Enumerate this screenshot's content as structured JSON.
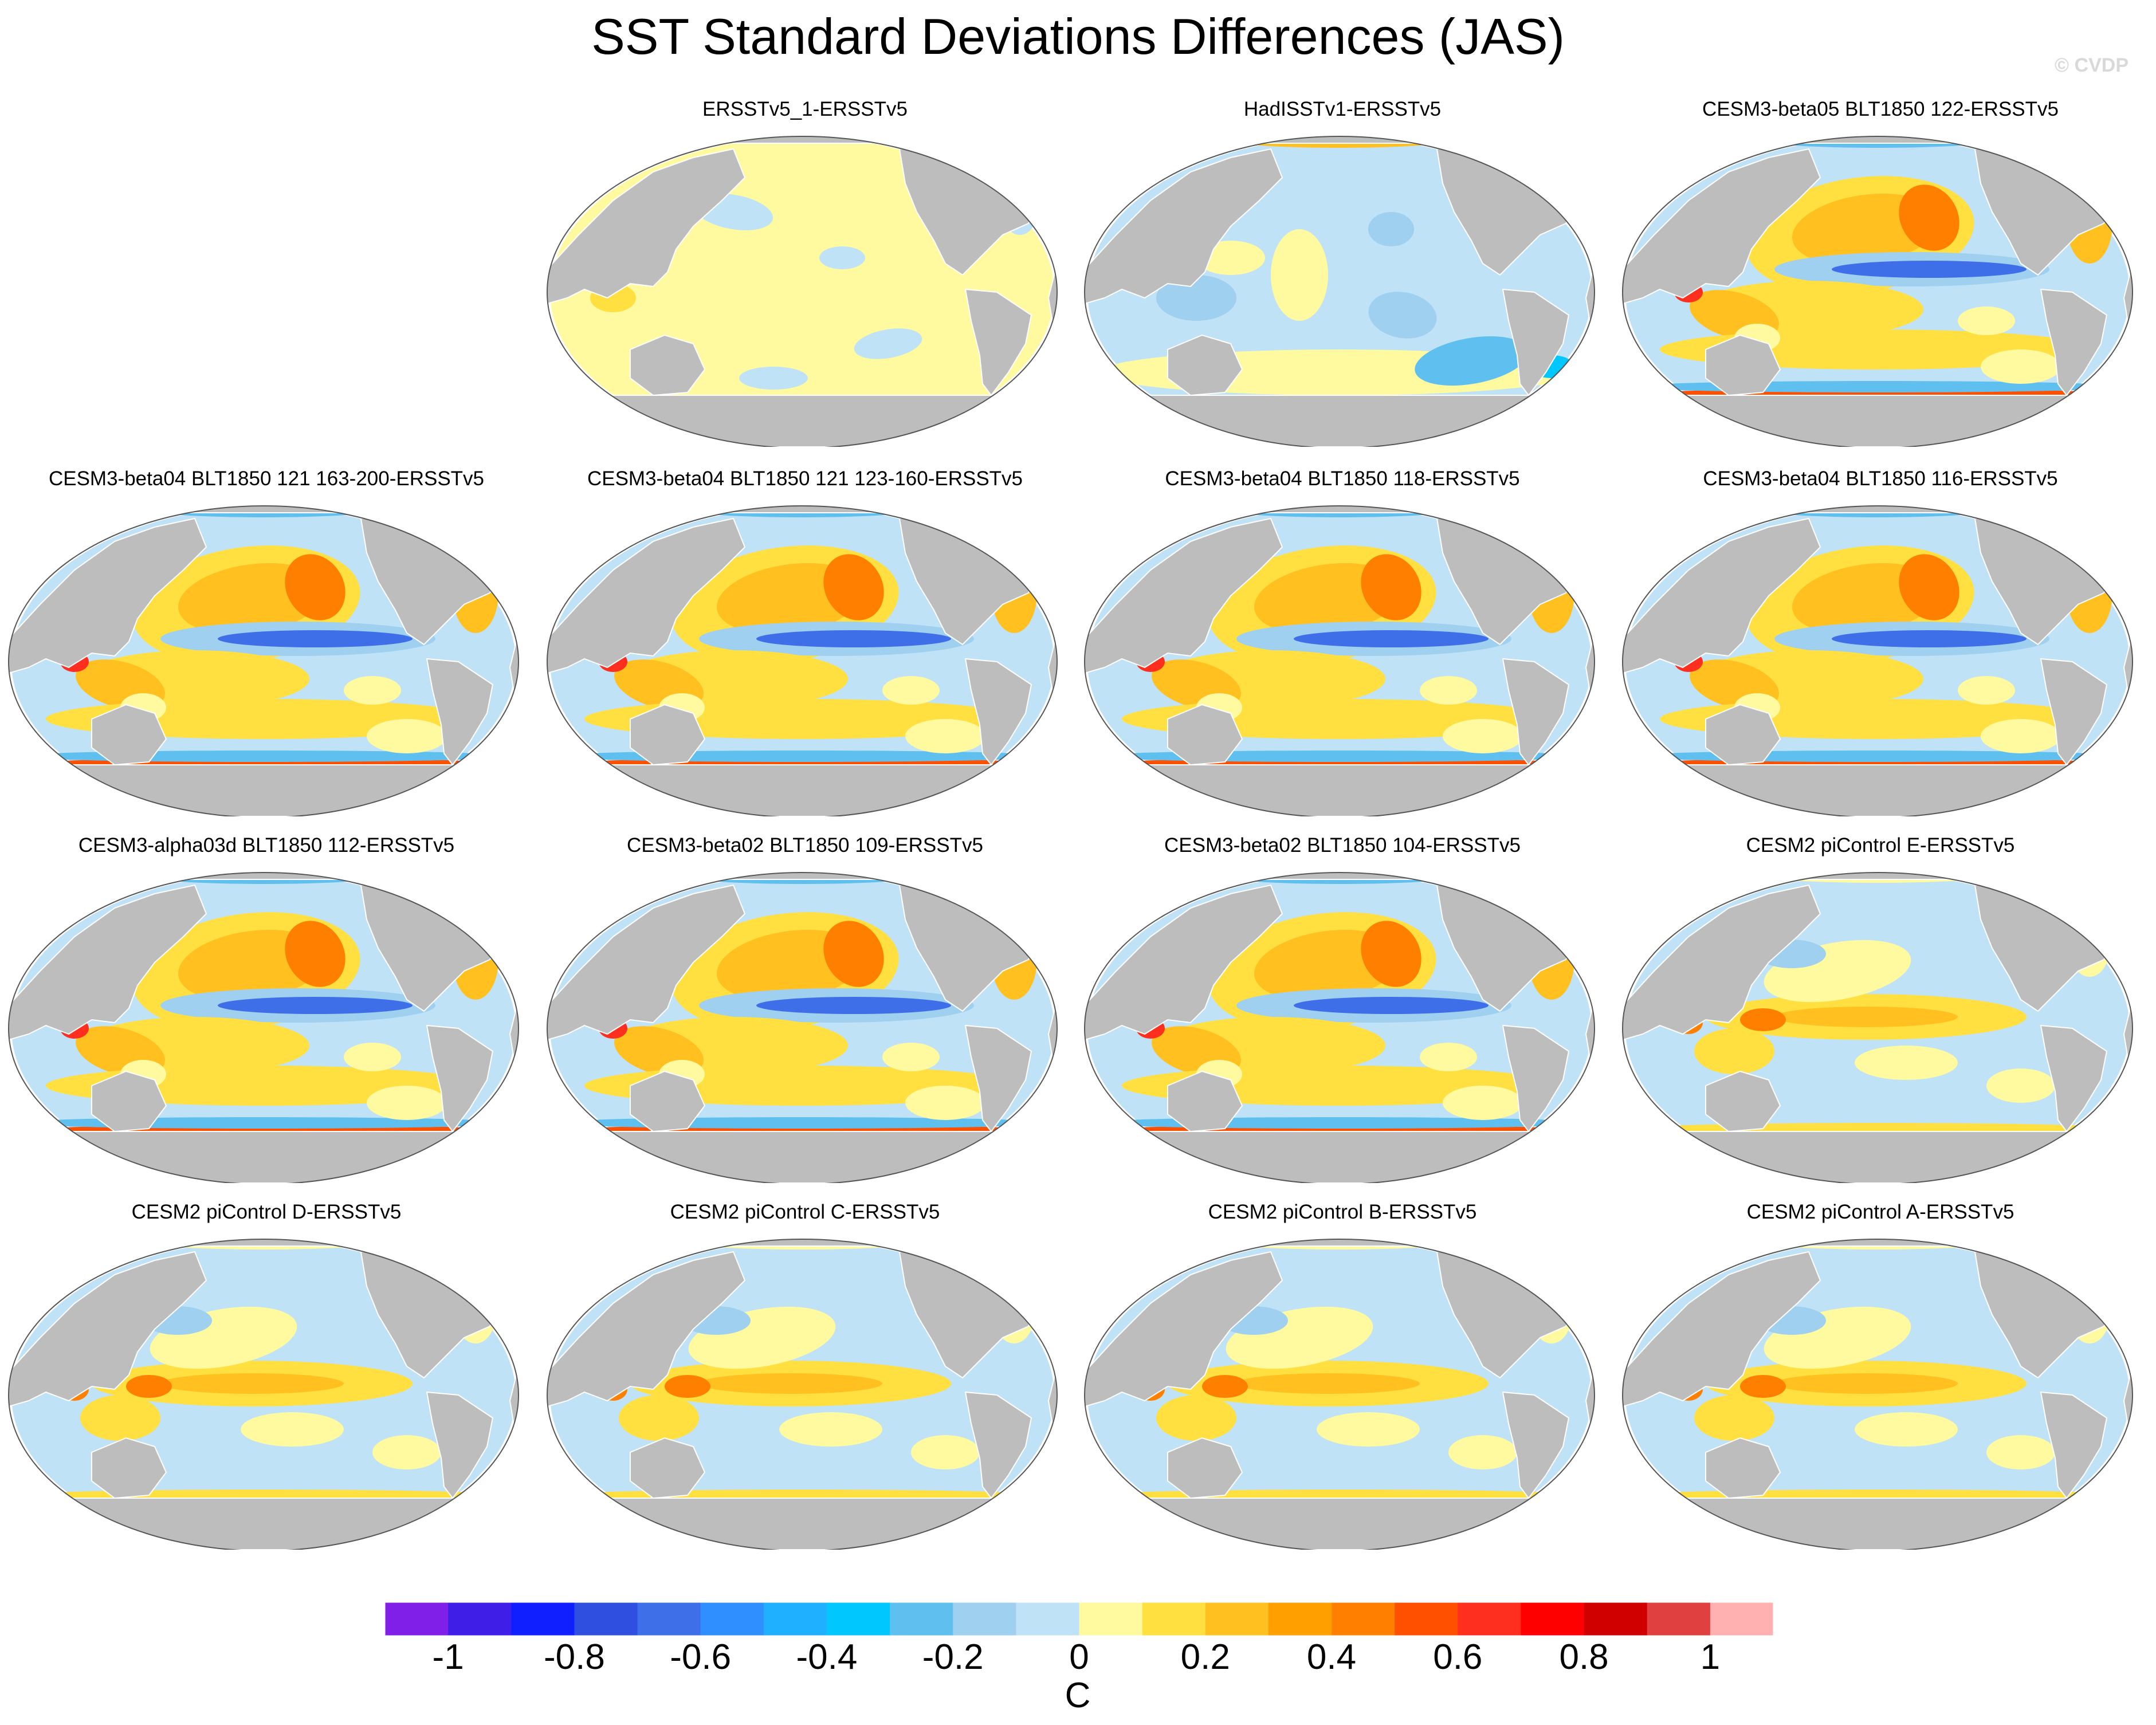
{
  "title": "SST Standard Deviations Differences (JAS)",
  "watermark": "© CVDP",
  "panels": [
    {
      "label": "ERSSTv5_1-ERSSTv5",
      "pattern": "neutral"
    },
    {
      "label": "HadISSTv1-ERSSTv5",
      "pattern": "cool"
    },
    {
      "label": "CESM3-beta05 BLT1850 122-ERSSTv5",
      "pattern": "model"
    },
    {
      "label": "CESM3-beta04 BLT1850 121 163-200-ERSSTv5",
      "pattern": "model"
    },
    {
      "label": "CESM3-beta04 BLT1850 121 123-160-ERSSTv5",
      "pattern": "model"
    },
    {
      "label": "CESM3-beta04 BLT1850 118-ERSSTv5",
      "pattern": "model"
    },
    {
      "label": "CESM3-beta04 BLT1850 116-ERSSTv5",
      "pattern": "model"
    },
    {
      "label": "CESM3-alpha03d BLT1850 112-ERSSTv5",
      "pattern": "model"
    },
    {
      "label": "CESM3-beta02 BLT1850 109-ERSSTv5",
      "pattern": "model"
    },
    {
      "label": "CESM3-beta02 BLT1850 104-ERSSTv5",
      "pattern": "model"
    },
    {
      "label": "CESM2 piControl E-ERSSTv5",
      "pattern": "cesm2"
    },
    {
      "label": "CESM2 piControl D-ERSSTv5",
      "pattern": "cesm2"
    },
    {
      "label": "CESM2 piControl C-ERSSTv5",
      "pattern": "cesm2"
    },
    {
      "label": "CESM2 piControl B-ERSSTv5",
      "pattern": "cesm2"
    },
    {
      "label": "CESM2 piControl A-ERSSTv5",
      "pattern": "cesm2"
    }
  ],
  "colorbar": {
    "unit": "C",
    "colors": [
      "#7f1fe8",
      "#3f1fe8",
      "#0f1fff",
      "#2f4fe0",
      "#3f6fe8",
      "#2f8fff",
      "#1fb0ff",
      "#00c8ff",
      "#5fc0f0",
      "#9fd0f0",
      "#bfe2f7",
      "#fffaa0",
      "#ffe040",
      "#ffc020",
      "#ffa000",
      "#ff8000",
      "#ff5000",
      "#ff2f1f",
      "#ff0000",
      "#d00000",
      "#e04040",
      "#ffb0b0"
    ],
    "ticks": [
      "-1",
      "-0.8",
      "-0.6",
      "-0.4",
      "-0.2",
      "0",
      "0.2",
      "0.4",
      "0.6",
      "0.8",
      "1"
    ]
  }
}
